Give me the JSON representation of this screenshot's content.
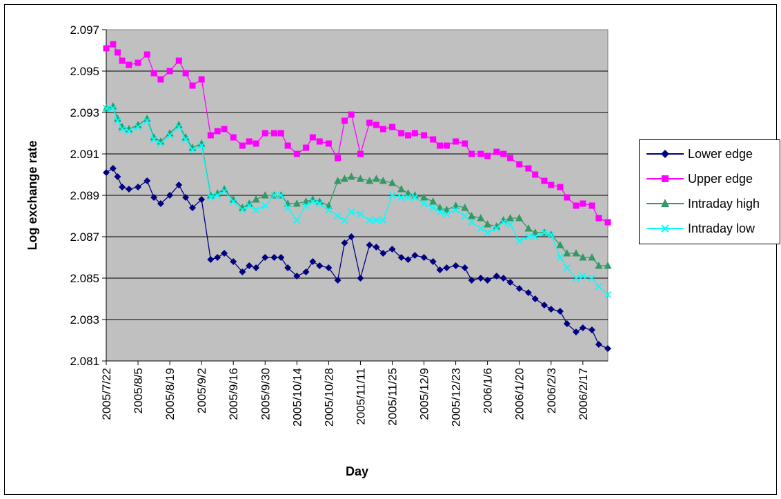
{
  "chart_data": {
    "type": "line",
    "title": "",
    "xlabel": "Day",
    "ylabel": "Log exchange rate",
    "ylim": [
      2.081,
      2.097
    ],
    "yticks": [
      "2.097",
      "2.095",
      "2.093",
      "2.091",
      "2.089",
      "2.087",
      "2.085",
      "2.083",
      "2.081"
    ],
    "xtick_labels": [
      "2005/7/22",
      "2005/8/5",
      "2005/8/19",
      "2005/9/2",
      "2005/9/16",
      "2005/9/30",
      "2005/10/14",
      "2005/10/28",
      "2005/11/11",
      "2005/11/25",
      "2005/12/9",
      "2005/12/23",
      "2006/1/6",
      "2006/1/20",
      "2006/2/3",
      "2006/2/17"
    ],
    "grid": true,
    "legend_position": "right",
    "x": [
      "2005/7/22",
      "2005/7/25",
      "2005/7/27",
      "2005/7/29",
      "2005/8/1",
      "2005/8/5",
      "2005/8/9",
      "2005/8/12",
      "2005/8/15",
      "2005/8/19",
      "2005/8/23",
      "2005/8/26",
      "2005/8/29",
      "2005/9/2",
      "2005/9/6",
      "2005/9/9",
      "2005/9/12",
      "2005/9/16",
      "2005/9/20",
      "2005/9/23",
      "2005/9/26",
      "2005/9/30",
      "2005/10/4",
      "2005/10/7",
      "2005/10/10",
      "2005/10/14",
      "2005/10/18",
      "2005/10/21",
      "2005/10/24",
      "2005/10/28",
      "2005/11/1",
      "2005/11/4",
      "2005/11/7",
      "2005/11/11",
      "2005/11/15",
      "2005/11/18",
      "2005/11/21",
      "2005/11/25",
      "2005/11/29",
      "2005/12/2",
      "2005/12/5",
      "2005/12/9",
      "2005/12/13",
      "2005/12/16",
      "2005/12/19",
      "2005/12/23",
      "2005/12/27",
      "2005/12/30",
      "2006/1/3",
      "2006/1/6",
      "2006/1/10",
      "2006/1/13",
      "2006/1/16",
      "2006/1/20",
      "2006/1/24",
      "2006/1/27",
      "2006/1/31",
      "2006/2/3",
      "2006/2/7",
      "2006/2/10",
      "2006/2/14",
      "2006/2/17",
      "2006/2/21",
      "2006/2/24",
      "2006/2/28"
    ],
    "series": [
      {
        "name": "Lower edge",
        "color": "#000080",
        "marker": "diamond",
        "values": [
          2.0901,
          2.0903,
          2.0899,
          2.0894,
          2.0893,
          2.0894,
          2.0897,
          2.0889,
          2.0886,
          2.089,
          2.0895,
          2.0889,
          2.0884,
          2.0888,
          2.0859,
          2.086,
          2.0862,
          2.0858,
          2.0853,
          2.0856,
          2.0855,
          2.086,
          2.086,
          2.086,
          2.0855,
          2.0851,
          2.0853,
          2.0858,
          2.0856,
          2.0855,
          2.0849,
          2.0867,
          2.087,
          2.085,
          2.0866,
          2.0865,
          2.0862,
          2.0864,
          2.086,
          2.0859,
          2.0861,
          2.086,
          2.0858,
          2.0854,
          2.0855,
          2.0856,
          2.0855,
          2.0849,
          2.085,
          2.0849,
          2.0851,
          2.085,
          2.0848,
          2.0845,
          2.0843,
          2.084,
          2.0837,
          2.0835,
          2.0834,
          2.0828,
          2.0824,
          2.0826,
          2.0825,
          2.0818,
          2.0816
        ]
      },
      {
        "name": "Upper edge",
        "color": "#FF00FF",
        "marker": "square",
        "values": [
          2.0961,
          2.0963,
          2.0959,
          2.0955,
          2.0953,
          2.0954,
          2.0958,
          2.0949,
          2.0946,
          2.095,
          2.0955,
          2.0949,
          2.0943,
          2.0946,
          2.0919,
          2.0921,
          2.0922,
          2.0918,
          2.0914,
          2.0916,
          2.0915,
          2.092,
          2.092,
          2.092,
          2.0914,
          2.091,
          2.0913,
          2.0918,
          2.0916,
          2.0915,
          2.0908,
          2.0926,
          2.0929,
          2.091,
          2.0925,
          2.0924,
          2.0922,
          2.0923,
          2.092,
          2.0919,
          2.092,
          2.0919,
          2.0917,
          2.0914,
          2.0914,
          2.0916,
          2.0915,
          2.091,
          2.091,
          2.0909,
          2.0911,
          2.091,
          2.0908,
          2.0905,
          2.0903,
          2.09,
          2.0897,
          2.0895,
          2.0894,
          2.0889,
          2.0885,
          2.0886,
          2.0885,
          2.0879,
          2.0877
        ]
      },
      {
        "name": "Intraday high",
        "color": "#339966",
        "marker": "triangle",
        "values": [
          2.0932,
          2.0933,
          2.0927,
          2.0923,
          2.0922,
          2.0924,
          2.0927,
          2.0918,
          2.0916,
          2.092,
          2.0924,
          2.0918,
          2.0913,
          2.0915,
          2.089,
          2.0891,
          2.0893,
          2.0888,
          2.0884,
          2.0886,
          2.0888,
          2.089,
          2.089,
          2.089,
          2.0886,
          2.0886,
          2.0887,
          2.0888,
          2.0887,
          2.0885,
          2.0897,
          2.0898,
          2.0899,
          2.0898,
          2.0897,
          2.0898,
          2.0897,
          2.0896,
          2.0893,
          2.0891,
          2.089,
          2.0889,
          2.0887,
          2.0884,
          2.0883,
          2.0885,
          2.0884,
          2.088,
          2.0879,
          2.0876,
          2.0875,
          2.0878,
          2.0879,
          2.0879,
          2.0874,
          2.0872,
          2.0872,
          2.0871,
          2.0866,
          2.0862,
          2.0862,
          2.086,
          2.086,
          2.0856,
          2.0856
        ]
      },
      {
        "name": "Intraday low",
        "color": "#00FFFF",
        "marker": "x",
        "values": [
          2.0932,
          2.0932,
          2.0926,
          2.0922,
          2.0921,
          2.0923,
          2.0926,
          2.0917,
          2.0915,
          2.0919,
          2.0923,
          2.0917,
          2.0912,
          2.0914,
          2.0889,
          2.089,
          2.0892,
          2.0887,
          2.0883,
          2.0885,
          2.0883,
          2.0885,
          2.089,
          2.089,
          2.0884,
          2.0878,
          2.0885,
          2.0887,
          2.0886,
          2.0883,
          2.088,
          2.0878,
          2.0882,
          2.0881,
          2.0878,
          2.0878,
          2.0878,
          2.089,
          2.0889,
          2.0889,
          2.0889,
          2.0886,
          2.0884,
          2.0882,
          2.0881,
          2.0883,
          2.088,
          2.0877,
          2.0874,
          2.0872,
          2.0874,
          2.0877,
          2.0876,
          2.0868,
          2.087,
          2.087,
          2.0872,
          2.0871,
          2.086,
          2.0855,
          2.085,
          2.0851,
          2.085,
          2.0846,
          2.0842
        ]
      }
    ]
  }
}
